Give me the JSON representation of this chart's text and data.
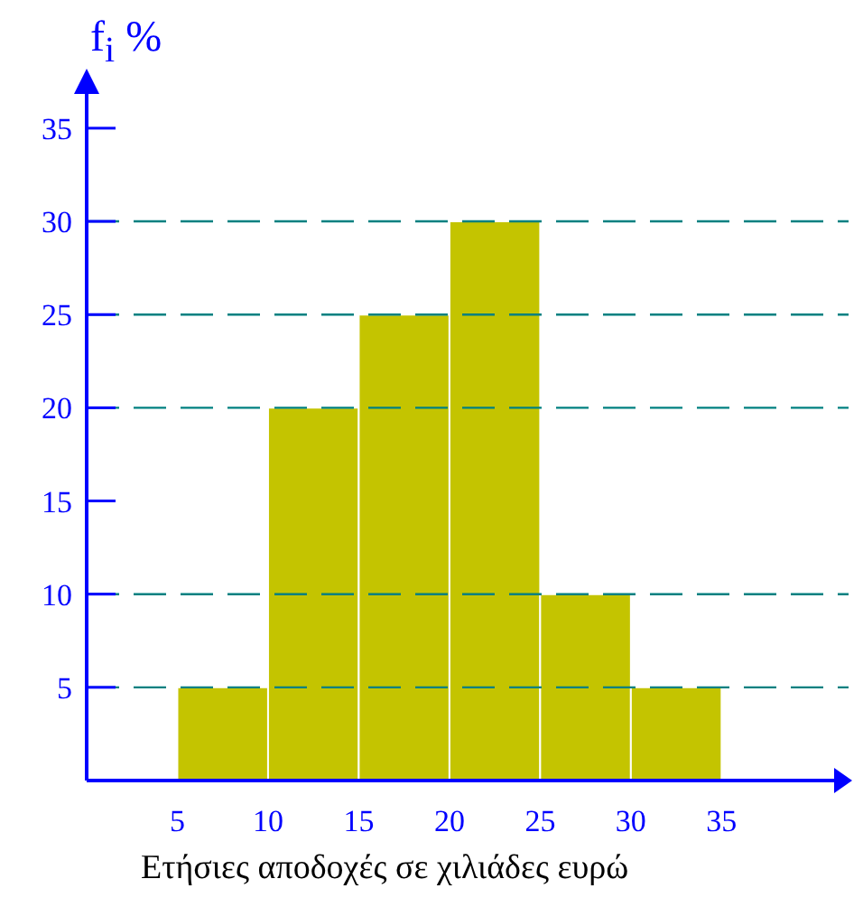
{
  "chart_data": {
    "type": "histogram",
    "xlabel": "Ετήσιες αποδοχές σε χιλιάδες ευρώ",
    "ylabel": "f$_{i}$ %",
    "bins": [
      5,
      10,
      15,
      20,
      25,
      30,
      35
    ],
    "values": [
      5,
      20,
      25,
      30,
      10,
      5
    ],
    "color": "#c4c400",
    "xlim": [
      0,
      42
    ],
    "xticks": [
      5,
      10,
      15,
      20,
      25,
      30,
      35
    ],
    "ylim": [
      0,
      38
    ],
    "yticks": [
      5,
      10,
      15,
      20,
      25,
      30,
      35
    ],
    "ref_lines": [
      {
        "axis": "y",
        "value": 5,
        "color": "#008080",
        "line_style": "dashed"
      },
      {
        "axis": "y",
        "value": 10,
        "color": "#008080",
        "line_style": "dashed"
      },
      {
        "axis": "y",
        "value": 20,
        "color": "#008080",
        "line_style": "dashed"
      },
      {
        "axis": "y",
        "value": 25,
        "color": "#008080",
        "line_style": "dashed"
      },
      {
        "axis": "y",
        "value": 30,
        "color": "#008080",
        "line_style": "dashed"
      }
    ],
    "grid": false
  }
}
